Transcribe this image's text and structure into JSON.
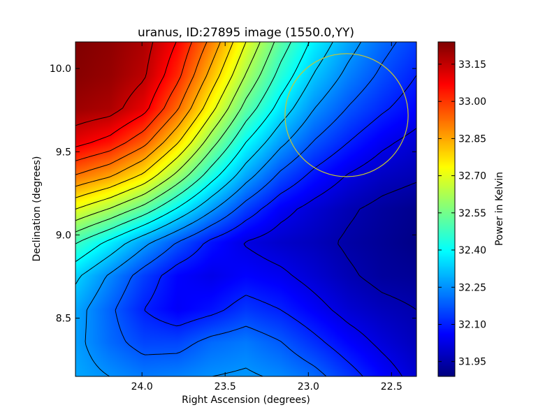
{
  "chart_data": {
    "type": "heatmap",
    "title": "uranus, ID:27895 image (1550.0,YY)",
    "xlabel": "Right Ascension (degrees)",
    "ylabel": "Declination (degrees)",
    "xlim": [
      24.4,
      22.35
    ],
    "ylim": [
      8.15,
      10.16
    ],
    "x_ticks": [
      24.0,
      23.5,
      23.0,
      22.5
    ],
    "x_tick_labels": [
      "24.0",
      "23.5",
      "23.0",
      "22.5"
    ],
    "y_ticks": [
      8.5,
      9.0,
      9.5,
      10.0
    ],
    "y_tick_labels": [
      "8.5",
      "9.0",
      "9.5",
      "10.0"
    ],
    "colorbar": {
      "label": "Power in Kelvin",
      "colormap": "jet",
      "range": [
        31.89,
        33.24
      ],
      "ticks": [
        31.95,
        32.1,
        32.25,
        32.4,
        32.55,
        32.7,
        32.85,
        33.0,
        33.15
      ],
      "tick_labels": [
        "31.95",
        "32.10",
        "32.25",
        "32.40",
        "32.55",
        "32.70",
        "32.85",
        "33.00",
        "33.15"
      ]
    },
    "contour_levels": [
      31.95,
      32.025,
      32.1,
      32.175,
      32.25,
      32.325,
      32.4,
      32.475,
      32.55,
      32.625,
      32.7,
      32.775,
      32.85,
      32.925,
      33.0,
      33.075,
      33.15
    ],
    "contour_color": "#000000",
    "grid": [
      [
        33.24,
        33.22,
        33.18,
        33.07,
        32.9,
        32.7,
        32.52,
        32.38,
        32.28,
        32.2,
        32.14
      ],
      [
        33.23,
        33.21,
        33.16,
        33.02,
        32.82,
        32.62,
        32.45,
        32.32,
        32.23,
        32.16,
        32.1
      ],
      [
        33.2,
        33.18,
        33.1,
        32.93,
        32.72,
        32.52,
        32.37,
        32.25,
        32.17,
        32.11,
        32.06
      ],
      [
        33.1,
        33.05,
        32.95,
        32.78,
        32.58,
        32.4,
        32.27,
        32.17,
        32.1,
        32.04,
        32.0
      ],
      [
        32.92,
        32.86,
        32.76,
        32.6,
        32.43,
        32.28,
        32.16,
        32.08,
        32.02,
        31.98,
        31.96
      ],
      [
        32.7,
        32.62,
        32.52,
        32.39,
        32.26,
        32.14,
        32.05,
        32.0,
        31.96,
        31.93,
        31.91
      ],
      [
        32.48,
        32.38,
        32.27,
        32.17,
        32.08,
        32.02,
        31.99,
        31.97,
        31.94,
        31.92,
        31.9
      ],
      [
        32.34,
        32.24,
        32.14,
        32.06,
        32.03,
        32.06,
        32.04,
        32.0,
        31.96,
        31.93,
        31.92
      ],
      [
        32.28,
        32.19,
        32.1,
        32.05,
        32.08,
        32.13,
        32.1,
        32.05,
        32.0,
        31.97,
        31.95
      ],
      [
        32.27,
        32.2,
        32.15,
        32.15,
        32.2,
        32.22,
        32.18,
        32.12,
        32.06,
        32.01,
        31.97
      ],
      [
        32.28,
        32.25,
        32.22,
        32.23,
        32.25,
        32.26,
        32.24,
        32.2,
        32.13,
        32.06,
        32.0
      ]
    ],
    "annotations": [
      {
        "type": "circle",
        "center": [
          22.77,
          9.72
        ],
        "radius": 0.37,
        "color": "#c8c832"
      }
    ]
  }
}
